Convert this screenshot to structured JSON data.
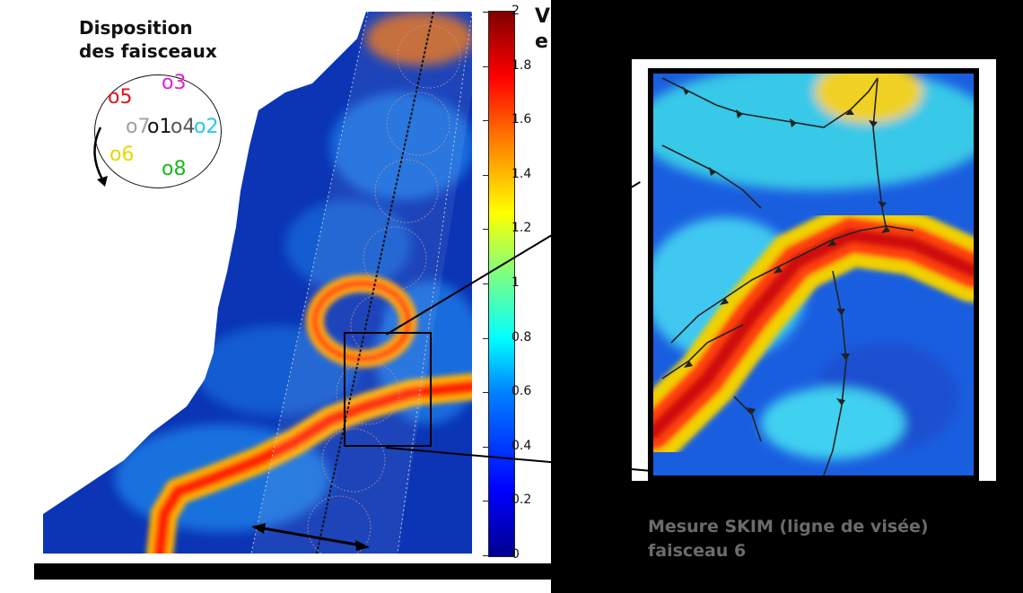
{
  "map": {
    "title_line1": "Disposition",
    "title_line2": "des faisceaux",
    "beams": [
      {
        "label": "o5",
        "color": "#e0141e"
      },
      {
        "label": "o3",
        "color": "#e020d0"
      },
      {
        "label": "o7",
        "color": "#a0a0a0"
      },
      {
        "label": "o1",
        "color": "#111111"
      },
      {
        "label": "o4",
        "color": "#555555"
      },
      {
        "label": "o2",
        "color": "#22c8e8"
      },
      {
        "label": "o6",
        "color": "#e8d800"
      },
      {
        "label": "o8",
        "color": "#18b818"
      }
    ]
  },
  "colorbar": {
    "ticks": [
      "2",
      "1.8",
      "1.6",
      "1.4",
      "1.2",
      "1",
      "0.8",
      "0.6",
      "0.4",
      "0.2",
      "0"
    ],
    "colormap": "jet"
  },
  "header_partial": {
    "line1": "V",
    "line2": "e"
  },
  "caption": {
    "line1": "Mesure SKIM (ligne de visée)",
    "line2": "faisceau 6"
  }
}
